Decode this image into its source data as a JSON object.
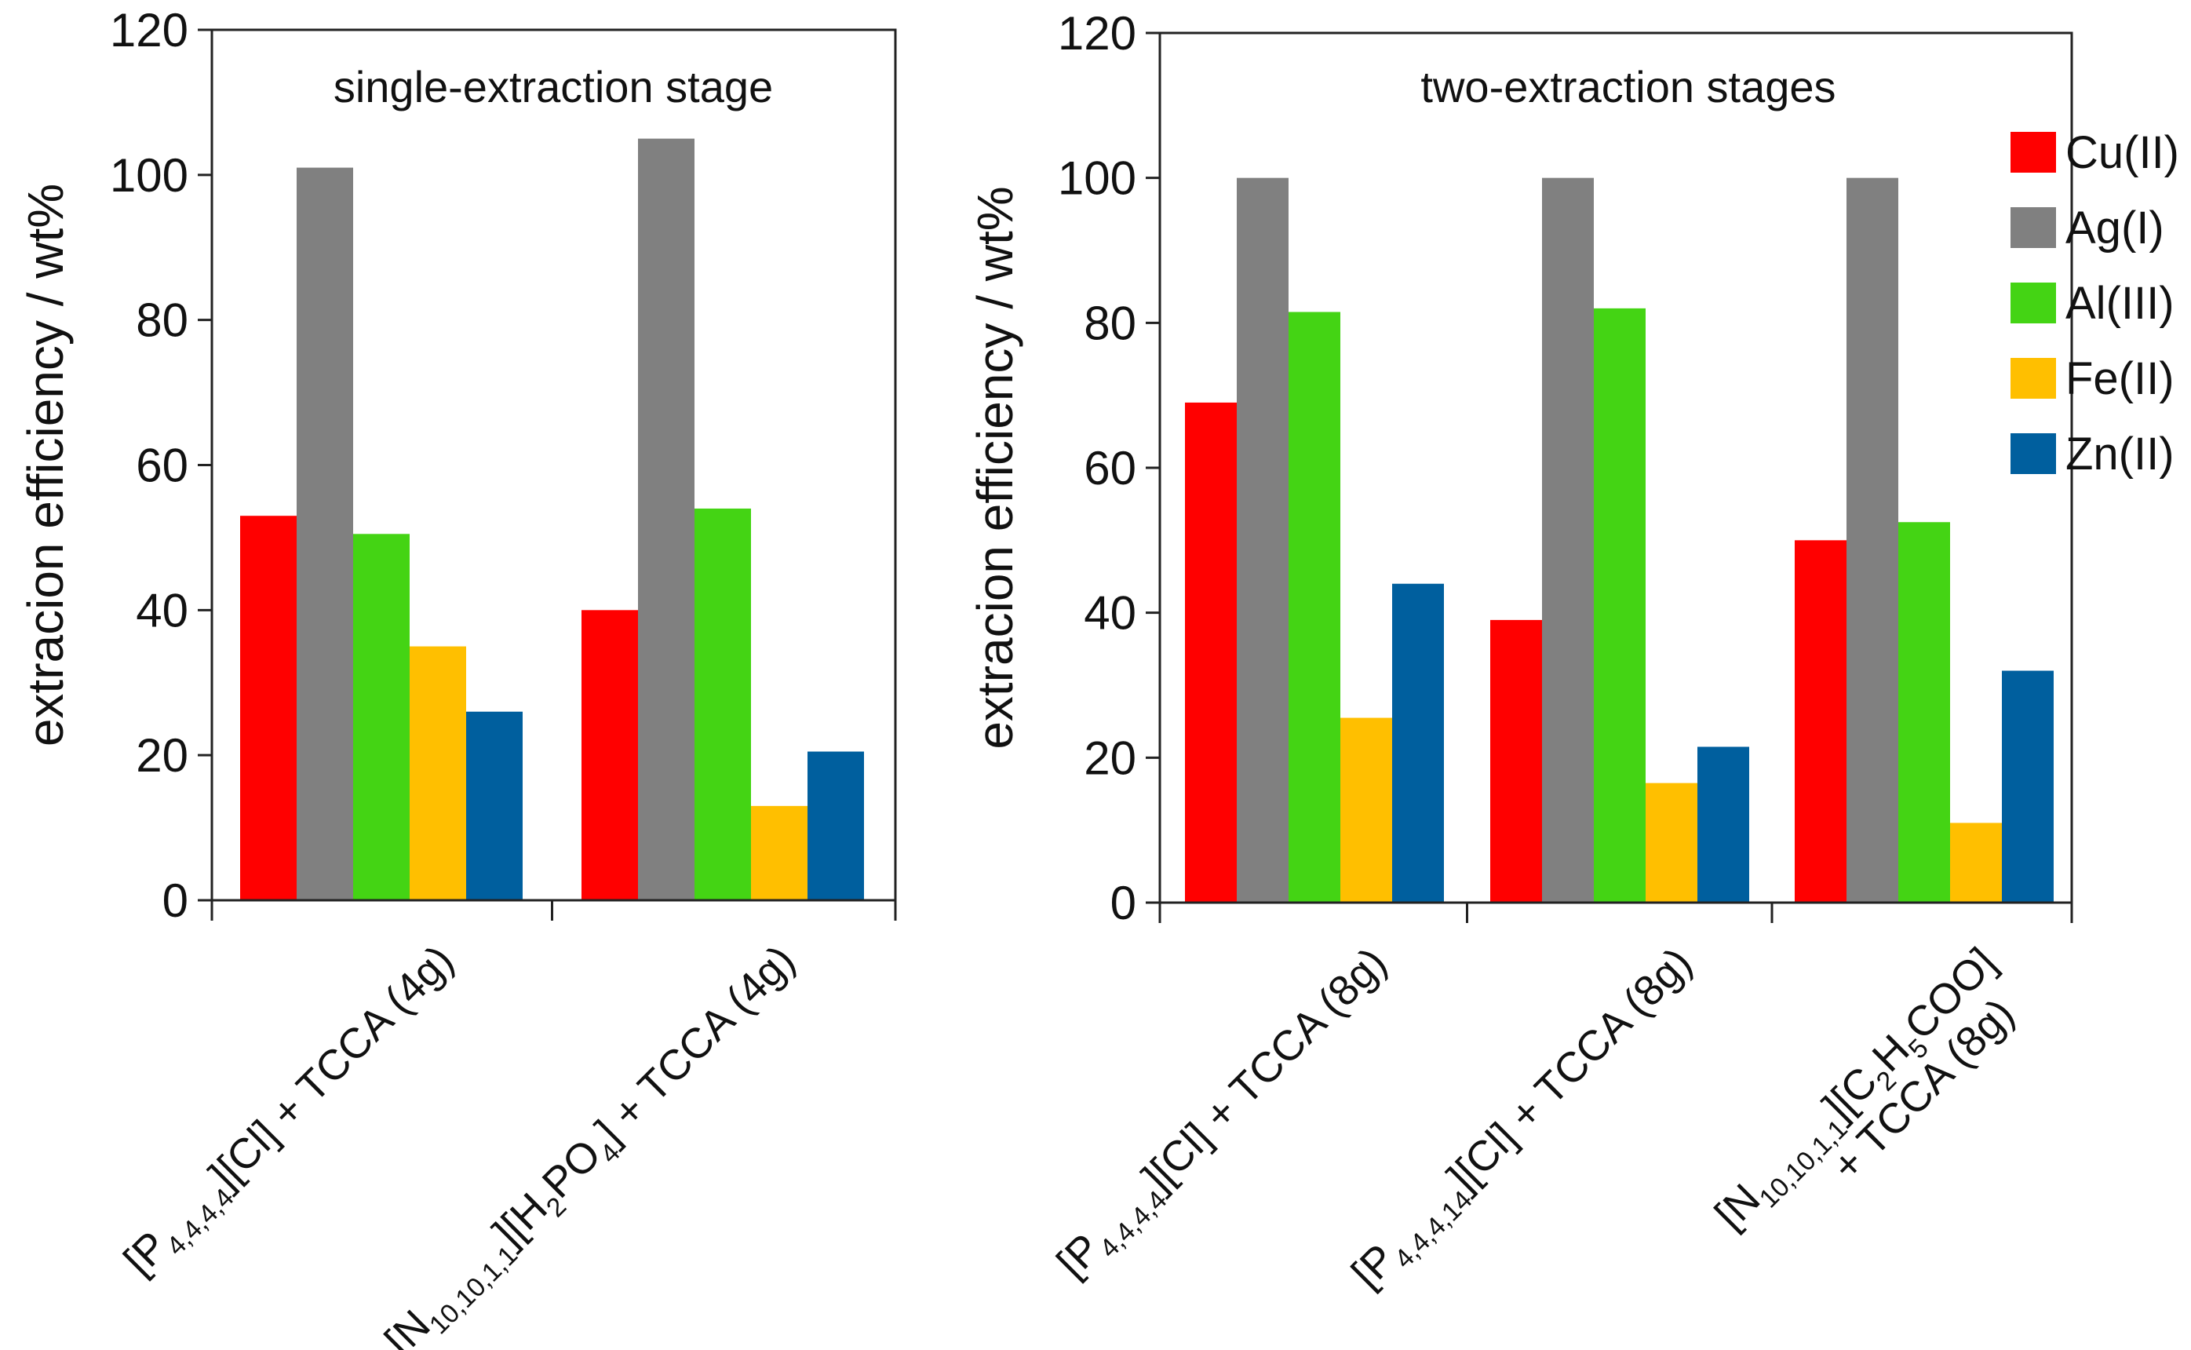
{
  "legend": [
    {
      "label": "Cu(II)",
      "color": "#ff0000"
    },
    {
      "label": "Ag(I)",
      "color": "#808080"
    },
    {
      "label": "Al(III)",
      "color": "#44d414"
    },
    {
      "label": "Fe(II)",
      "color": "#ffbf00"
    },
    {
      "label": "Zn(II)",
      "color": "#005f9e"
    }
  ],
  "chart_data": [
    {
      "type": "bar",
      "title": "single-extraction stage",
      "ylabel": "extracion efficiency / wt%",
      "ylim": [
        0,
        120
      ],
      "yticks": [
        0,
        20,
        40,
        60,
        80,
        100,
        120
      ],
      "categories": [
        {
          "main": "[P",
          "sub": "4,4,4,4",
          "rest": "][Cl] + TCCA (4g)"
        },
        {
          "main": "[N",
          "sub": "10,10,1,1",
          "rest": "][H",
          "sub2": "2",
          "rest2": "PO",
          "sub3": "4",
          "rest3": "] + TCCA (4g)"
        }
      ],
      "series": [
        {
          "name": "Cu(II)",
          "values": [
            53,
            40
          ]
        },
        {
          "name": "Ag(I)",
          "values": [
            101,
            105
          ]
        },
        {
          "name": "Al(III)",
          "values": [
            50.5,
            54
          ]
        },
        {
          "name": "Fe(II)",
          "values": [
            35,
            13
          ]
        },
        {
          "name": "Zn(II)",
          "values": [
            26,
            20.5
          ]
        }
      ]
    },
    {
      "type": "bar",
      "title": "two-extraction stages",
      "ylabel": "extracion efficiency / wt%",
      "ylim": [
        0,
        120
      ],
      "yticks": [
        0,
        20,
        40,
        60,
        80,
        100,
        120
      ],
      "categories": [
        {
          "main": "[P",
          "sub": "4,4,4,4",
          "rest": "][Cl] + TCCA (8g)"
        },
        {
          "main": "[P",
          "sub": "4,4,4,14",
          "rest": "][Cl] + TCCA (8g)"
        },
        {
          "main": "[N",
          "sub": "10,10,1,1",
          "rest": "][C",
          "sub2": "2",
          "rest2": "H",
          "sub3": "5",
          "rest3": "COO]",
          "line2": "+ TCCA (8g)"
        }
      ],
      "series": [
        {
          "name": "Cu(II)",
          "values": [
            69,
            39,
            50
          ]
        },
        {
          "name": "Ag(I)",
          "values": [
            100,
            100,
            100
          ]
        },
        {
          "name": "Al(III)",
          "values": [
            81.5,
            82,
            52.5
          ]
        },
        {
          "name": "Fe(II)",
          "values": [
            25.5,
            16.5,
            11
          ]
        },
        {
          "name": "Zn(II)",
          "values": [
            44,
            21.5,
            32
          ]
        }
      ]
    }
  ]
}
